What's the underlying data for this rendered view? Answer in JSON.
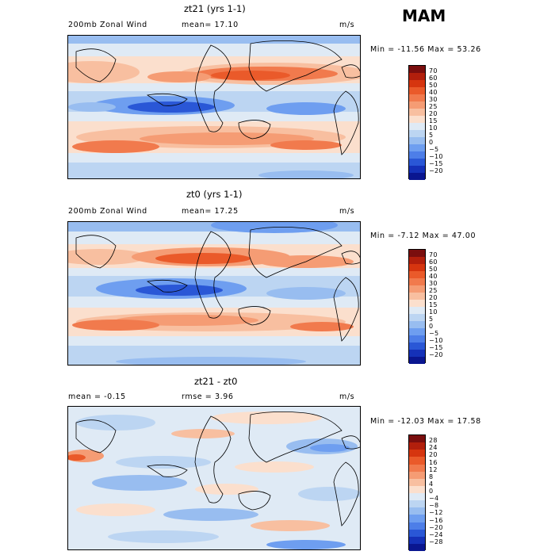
{
  "season_label": "MAM",
  "panels": [
    {
      "title": "zt21 (yrs 1-1)",
      "field_label": "200mb Zonal Wind",
      "stat1": "mean=  17.10",
      "stat2": "",
      "units": "m/s",
      "minmax": "Min = -11.56 Max =  53.26",
      "colorbar_labels": [
        "70",
        "60",
        "50",
        "40",
        "30",
        "25",
        "20",
        "15",
        "10",
        "5",
        "0",
        "−5",
        "−10",
        "−15",
        "−20"
      ],
      "colorbar_colors": [
        "#7a0e0e",
        "#b21f0c",
        "#d6350f",
        "#ea5a2a",
        "#f17a4d",
        "#f59c74",
        "#f8bfa0",
        "#fbdfcd",
        "#dfeaf5",
        "#bcd5f2",
        "#98bdf0",
        "#6e9ef0",
        "#4d7ee8",
        "#2a57d6",
        "#1531b8",
        "#0a1690"
      ]
    },
    {
      "title": "zt0 (yrs 1-1)",
      "field_label": "200mb Zonal Wind",
      "stat1": "mean=  17.25",
      "stat2": "",
      "units": "m/s",
      "minmax": "Min =  -7.12 Max =  47.00",
      "colorbar_labels": [
        "70",
        "60",
        "50",
        "40",
        "30",
        "25",
        "20",
        "15",
        "10",
        "5",
        "0",
        "−5",
        "−10",
        "−15",
        "−20"
      ],
      "colorbar_colors": [
        "#7a0e0e",
        "#b21f0c",
        "#d6350f",
        "#ea5a2a",
        "#f17a4d",
        "#f59c74",
        "#f8bfa0",
        "#fbdfcd",
        "#dfeaf5",
        "#bcd5f2",
        "#98bdf0",
        "#6e9ef0",
        "#4d7ee8",
        "#2a57d6",
        "#1531b8",
        "#0a1690"
      ]
    },
    {
      "title": "zt21 - zt0",
      "field_label": "mean =  -0.15",
      "stat1": "rmse =   3.96",
      "stat2": "",
      "units": "m/s",
      "minmax": "Min = -12.03 Max =  17.58",
      "colorbar_labels": [
        "28",
        "24",
        "20",
        "16",
        "12",
        "8",
        "4",
        "0",
        "−4",
        "−8",
        "−12",
        "−16",
        "−20",
        "−24",
        "−28"
      ],
      "colorbar_colors": [
        "#7a0e0e",
        "#b21f0c",
        "#d6350f",
        "#ea5a2a",
        "#f17a4d",
        "#f59c74",
        "#f8bfa0",
        "#fbdfcd",
        "#dfeaf5",
        "#bcd5f2",
        "#98bdf0",
        "#6e9ef0",
        "#4d7ee8",
        "#2a57d6",
        "#1531b8",
        "#0a1690"
      ]
    }
  ]
}
